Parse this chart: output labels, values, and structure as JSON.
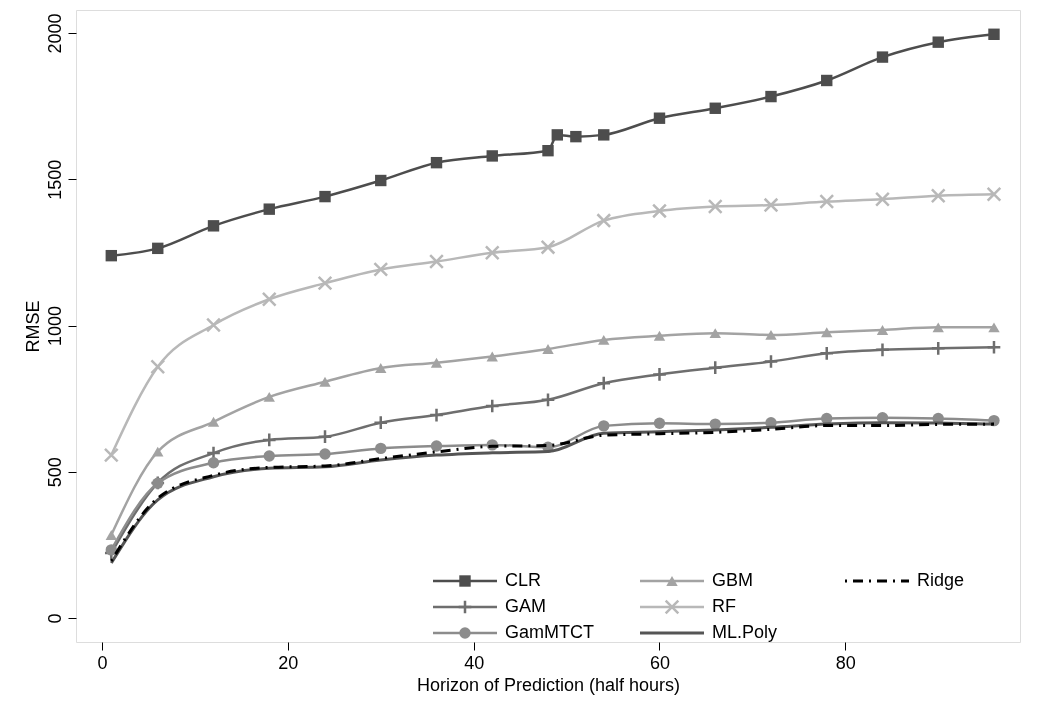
{
  "chart_data": {
    "type": "line",
    "xlabel": "Horizon of Prediction (half hours)",
    "ylabel": "RMSE",
    "x": [
      1,
      6,
      12,
      18,
      24,
      30,
      36,
      42,
      48,
      54,
      60,
      66,
      72,
      78,
      84,
      90,
      96
    ],
    "xlim": [
      -2.8,
      98.8
    ],
    "xticks": [
      0,
      20,
      40,
      60,
      80
    ],
    "ylim": [
      -82,
      2079
    ],
    "yticks": [
      0,
      500,
      1000,
      1500,
      2000
    ],
    "grid": false,
    "legend": "bottom right",
    "series": [
      {
        "name": "CLR",
        "color": "#4d4d4d",
        "marker": "square",
        "x": [
          1,
          6,
          12,
          18,
          24,
          30,
          36,
          42,
          48,
          49,
          51,
          54,
          60,
          66,
          72,
          78,
          84,
          90,
          96
        ],
        "values": [
          1239,
          1264,
          1341,
          1398,
          1441,
          1496,
          1557,
          1580,
          1598,
          1652,
          1646,
          1652,
          1709,
          1743,
          1783,
          1838,
          1918,
          1969,
          1996
        ]
      },
      {
        "name": "GAM",
        "color": "#6e6e6e",
        "marker": "cross",
        "values": [
          222,
          462,
          564,
          609,
          620,
          668,
          694,
          725,
          746,
          803,
          833,
          856,
          877,
          905,
          917,
          922,
          926
        ]
      },
      {
        "name": "GamMTCT",
        "color": "#8c8c8c",
        "marker": "circle",
        "values": [
          233,
          461,
          531,
          554,
          561,
          580,
          588,
          592,
          584,
          657,
          666,
          663,
          668,
          682,
          685,
          682,
          675
        ]
      },
      {
        "name": "GBM",
        "color": "#a3a3a3",
        "marker": "triangle",
        "values": [
          284,
          569,
          671,
          756,
          808,
          855,
          873,
          894,
          920,
          951,
          965,
          974,
          968,
          977,
          985,
          994,
          994
        ]
      },
      {
        "name": "RF",
        "color": "#b8b8b8",
        "marker": "x",
        "values": [
          557,
          859,
          1002,
          1090,
          1145,
          1192,
          1219,
          1249,
          1268,
          1359,
          1392,
          1407,
          1412,
          1424,
          1432,
          1444,
          1449
        ]
      },
      {
        "name": "ML.Poly",
        "color": "#555555",
        "marker": "none",
        "values": [
          188,
          404,
          483,
          512,
          517,
          540,
          557,
          565,
          569,
          632,
          637,
          643,
          652,
          663,
          668,
          667,
          663
        ]
      },
      {
        "name": "Ridge",
        "color": "#000000",
        "marker": "none",
        "line_style": "dashed",
        "values": [
          195,
          410,
          488,
          515,
          520,
          545,
          568,
          587,
          590,
          625,
          630,
          635,
          645,
          658,
          658,
          662,
          663
        ]
      }
    ]
  }
}
